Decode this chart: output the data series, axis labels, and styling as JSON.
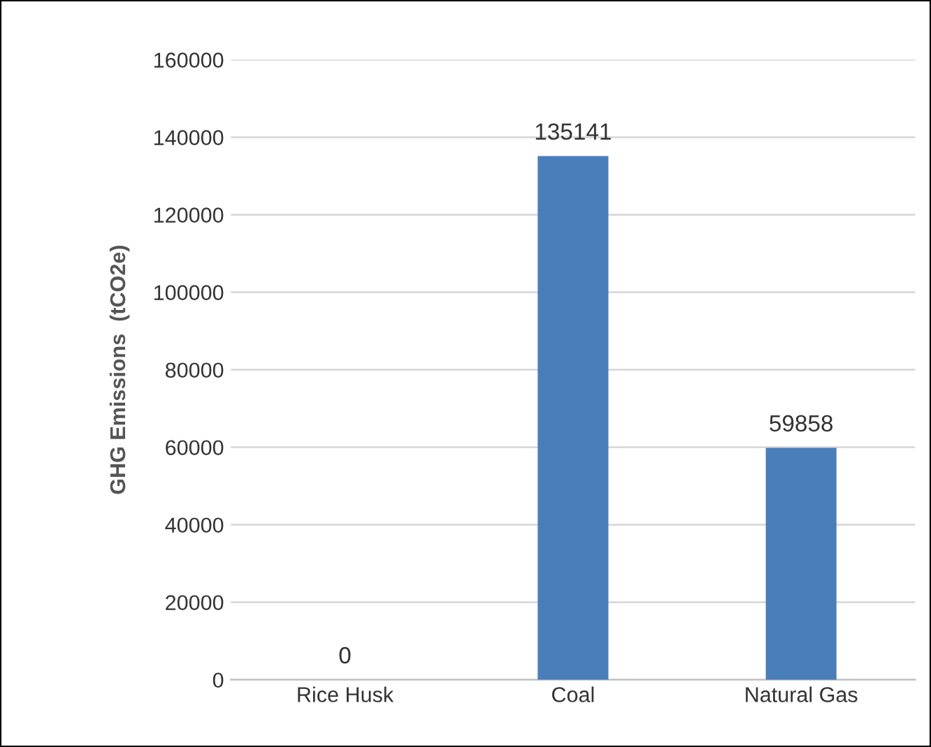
{
  "chart_data": {
    "type": "bar",
    "ylabel": "GHG Emissions  (tCO2e)",
    "categories": [
      "Rice Husk",
      "Coal",
      "Natural Gas"
    ],
    "values": [
      0,
      135141,
      59858
    ],
    "color": "#4a7ebb",
    "ylim": [
      0,
      160000
    ],
    "yticks": [
      0,
      20000,
      40000,
      60000,
      80000,
      100000,
      120000,
      140000,
      160000
    ],
    "grid": "y",
    "data_labels": true
  }
}
